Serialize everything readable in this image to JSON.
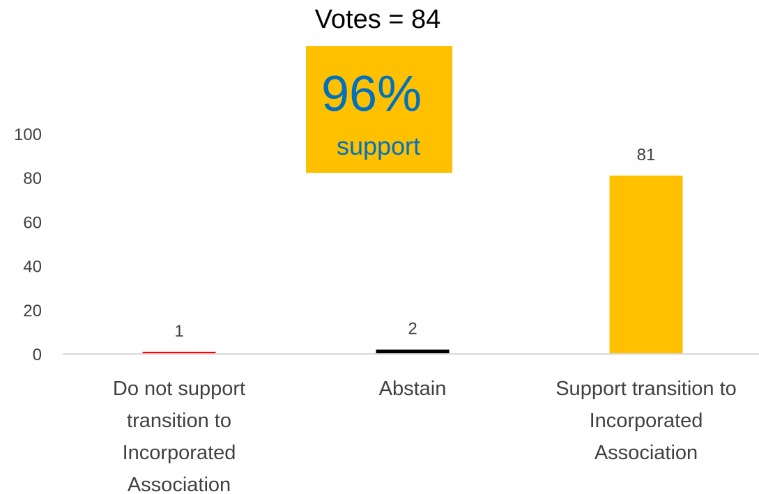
{
  "chart_data": {
    "type": "bar",
    "title": "Votes = 84",
    "categories": [
      "Do not support transition to Incorporated Association",
      "Abstain",
      "Support transition to Incorporated Association"
    ],
    "category_lines": [
      [
        "Do not support",
        "transition to",
        "Incorporated",
        "Association"
      ],
      [
        "Abstain"
      ],
      [
        "Support transition to",
        "Incorporated",
        "Association"
      ]
    ],
    "values": [
      1,
      2,
      81
    ],
    "data_labels": [
      "1",
      "2",
      "81"
    ],
    "bar_colors": [
      "#FF0000",
      "#000000",
      "#FFC000"
    ],
    "ylim": [
      0,
      100
    ],
    "yticks": [
      0,
      20,
      40,
      60,
      80,
      100
    ],
    "ytick_labels": [
      "0",
      "20",
      "40",
      "60",
      "80",
      "100"
    ],
    "xlabel": "",
    "ylabel": "",
    "grid": false,
    "legend": "none"
  },
  "callout": {
    "percent": "96%",
    "label": "support",
    "background_color": "#FFC000",
    "text_color": "#0070C0"
  },
  "axis_color": "#D9D9D9"
}
